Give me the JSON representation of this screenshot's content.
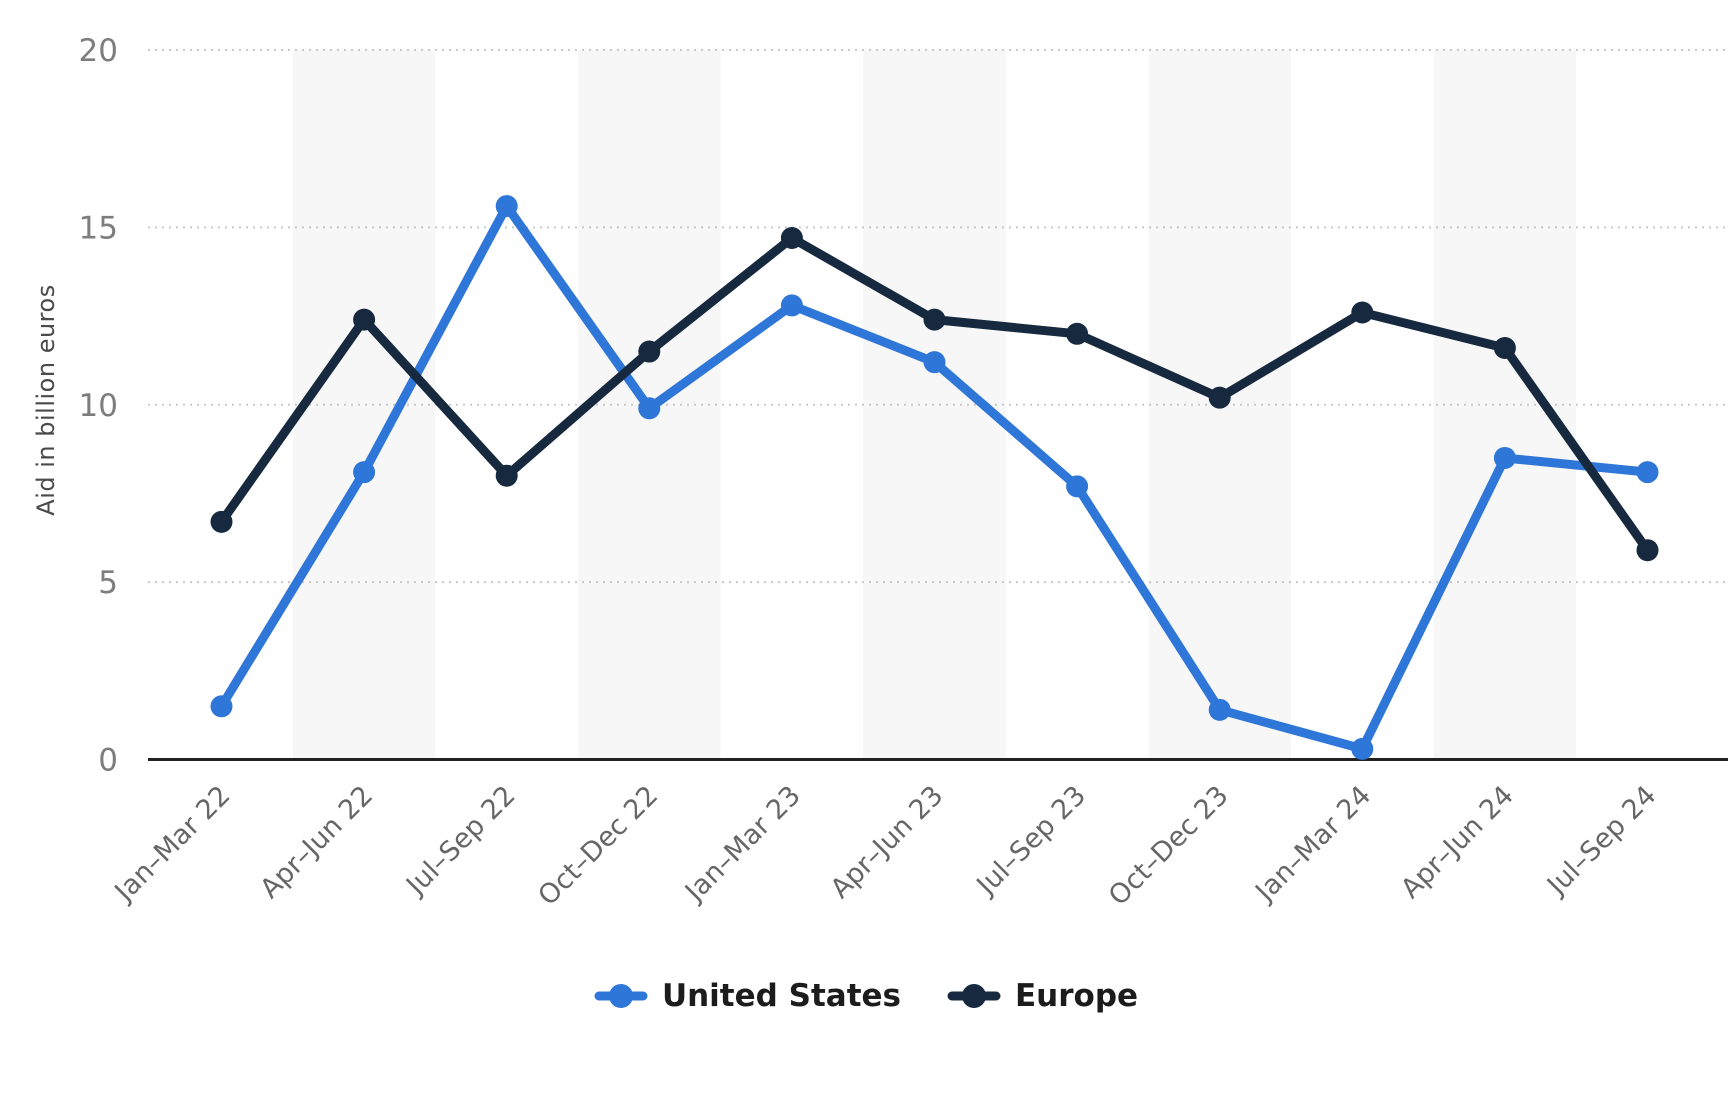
{
  "y_axis": {
    "title": "Aid in billion euros",
    "tick_labels": [
      "20",
      "15",
      "10",
      "5",
      "0"
    ]
  },
  "x_axis": {
    "labels": [
      "Jan–Mar 22",
      "Apr–Jun 22",
      "Jul–Sep 22",
      "Oct–Dec 22",
      "Jan–Mar 23",
      "Apr–Jun 23",
      "Jul–Sep 23",
      "Oct–Dec 23",
      "Jan–Mar 24",
      "Apr–Jun 24",
      "Jul–Sep 24"
    ]
  },
  "legend": {
    "items": [
      {
        "label": "United States"
      },
      {
        "label": "Europe"
      }
    ]
  },
  "colors": {
    "united_states": "#2E76D8",
    "europe": "#16293E",
    "gridline": "#c9c9c9",
    "axis_line": "#222222",
    "quarter_band": "#f7f7f7",
    "y_tick_text": "#7d7d7d",
    "x_label_text": "#666666",
    "y_title_text": "#4a4a4a",
    "legend_text": "#1c1c1c",
    "background": "#ffffff"
  },
  "chart_data": {
    "type": "line",
    "categories": [
      "Jan–Mar 22",
      "Apr–Jun 22",
      "Jul–Sep 22",
      "Oct–Dec 22",
      "Jan–Mar 23",
      "Apr–Jun 23",
      "Jul–Sep 23",
      "Oct–Dec 23",
      "Jan–Mar 24",
      "Apr–Jun 24",
      "Jul–Sep 24"
    ],
    "series": [
      {
        "name": "United States",
        "color": "#2E76D8",
        "values": [
          1.5,
          8.1,
          15.6,
          9.9,
          12.8,
          11.2,
          7.7,
          1.4,
          0.3,
          8.5,
          8.1
        ]
      },
      {
        "name": "Europe",
        "color": "#16293E",
        "values": [
          6.7,
          12.4,
          8.0,
          11.5,
          14.7,
          12.4,
          12.0,
          10.2,
          12.6,
          11.6,
          5.9
        ]
      }
    ],
    "title": "",
    "xlabel": "",
    "ylabel": "Aid in billion euros",
    "ylim": [
      0,
      20
    ],
    "yticks": [
      0,
      5,
      10,
      15,
      20
    ],
    "grid": true,
    "gridline_style": "dotted horizontal",
    "legend_position": "bottom center",
    "plot_bands": "light gray vertical bands centered on every 2nd category (Apr–Jun 22, Oct–Dec 22, Apr–Jun 23, Oct–Dec 23, Apr–Jun 24)"
  }
}
